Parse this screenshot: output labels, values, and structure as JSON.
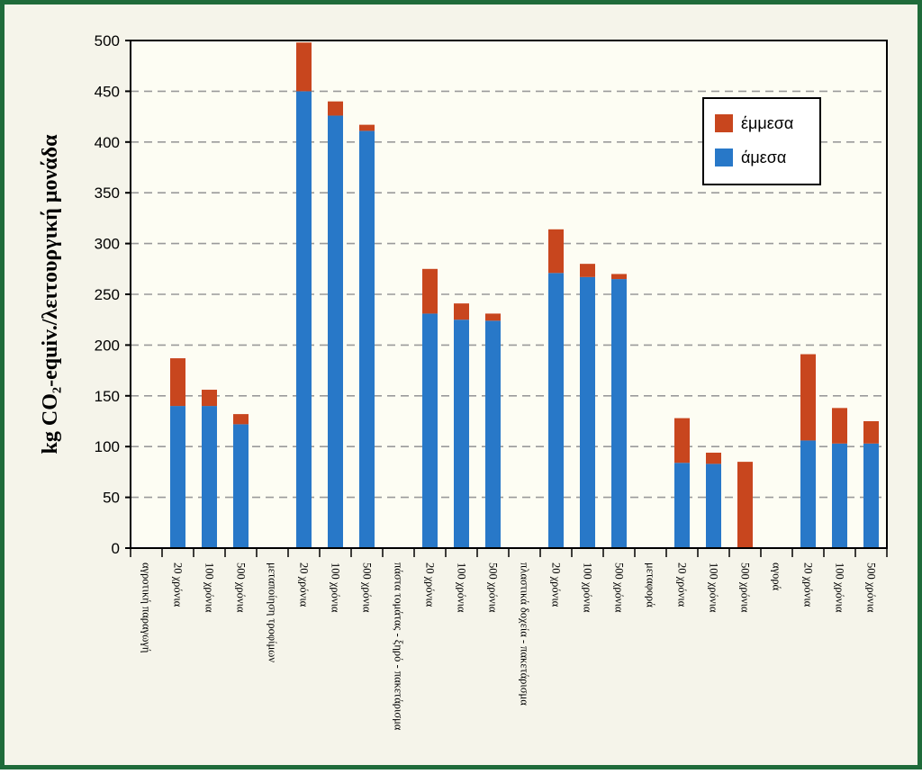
{
  "chart_data": {
    "type": "bar",
    "stacked": true,
    "title": "",
    "xlabel": "",
    "ylabel": "kg CO₂-equiv./λειτουργική μονάδα",
    "ylim": [
      0,
      500
    ],
    "yticks": [
      0,
      50,
      100,
      150,
      200,
      250,
      300,
      350,
      400,
      450,
      500
    ],
    "grid": "horizontal-dashed",
    "legend_position": "top-right",
    "categories": [
      "αγροτική παραγωγή",
      "20 χρόνια",
      "100 χρόνια",
      "500 χρόνια",
      "μεταποίηση τροφίμων",
      "20 χρόνια",
      "100 χρόνια",
      "500 χρόνια",
      "πάστα τομάτας - ξηρό - πακετάρισμα",
      "20 χρόνια",
      "100 χρόνια",
      "500 χρόνια",
      "πλαστικά δοχεία - πακετάρισμα",
      "20 χρόνια",
      "100 χρόνια",
      "500 χρόνια",
      "μεταφορά",
      "20 χρόνια",
      "100 χρόνια",
      "500 χρόνια",
      "αγορά",
      "20 χρόνια",
      "100 χρόνια",
      "500 χρόνια"
    ],
    "series": [
      {
        "name": "άμεσα",
        "color": "#2878c8",
        "values": [
          null,
          140,
          140,
          122,
          null,
          450,
          426,
          411,
          null,
          231,
          225,
          224,
          null,
          271,
          267,
          265,
          null,
          84,
          83,
          0,
          null,
          106,
          103,
          103
        ]
      },
      {
        "name": "έμμεσα",
        "color": "#c8461e",
        "values": [
          null,
          47,
          16,
          10,
          null,
          48,
          14,
          6,
          null,
          44,
          16,
          7,
          null,
          43,
          13,
          5,
          null,
          44,
          11,
          85,
          null,
          85,
          35,
          22
        ]
      }
    ],
    "legend_order": [
      "έμμεσα",
      "άμεσα"
    ]
  }
}
